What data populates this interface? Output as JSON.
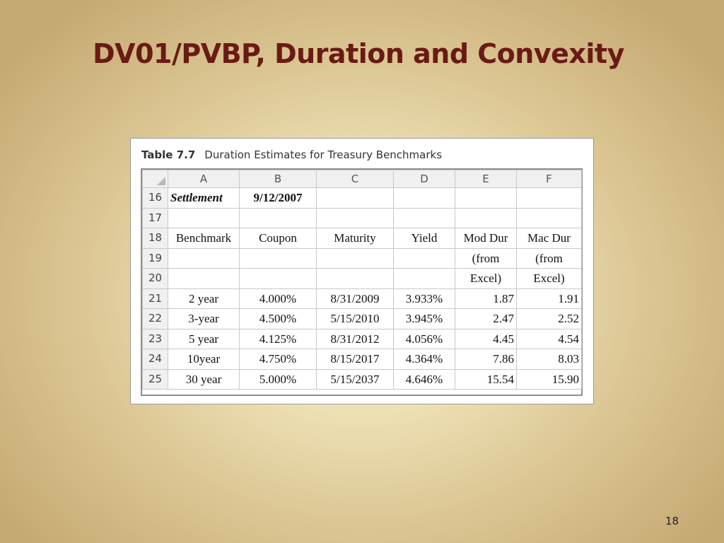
{
  "slide": {
    "title": "DV01/PVBP, Duration and Convexity",
    "page_number": "18"
  },
  "figure": {
    "label": "Table 7.7",
    "caption": "Duration Estimates for Treasury Benchmarks"
  },
  "sheet": {
    "columns": [
      "A",
      "B",
      "C",
      "D",
      "E",
      "F"
    ],
    "rows": {
      "r16": {
        "num": "16",
        "cells": [
          "Settlement",
          "9/12/2007",
          "",
          "",
          "",
          ""
        ]
      },
      "r17": {
        "num": "17",
        "cells": [
          "",
          "",
          "",
          "",
          "",
          ""
        ]
      },
      "r18": {
        "num": "18",
        "cells": [
          "Benchmark",
          "Coupon",
          "Maturity",
          "Yield",
          "Mod Dur",
          "Mac Dur"
        ]
      },
      "r19": {
        "num": "19",
        "cells": [
          "",
          "",
          "",
          "",
          "(from",
          "(from"
        ]
      },
      "r20": {
        "num": "20",
        "cells": [
          "",
          "",
          "",
          "",
          "Excel)",
          "Excel)"
        ]
      },
      "r21": {
        "num": "21",
        "cells": [
          "2 year",
          "4.000%",
          "8/31/2009",
          "3.933%",
          "1.87",
          "1.91"
        ]
      },
      "r22": {
        "num": "22",
        "cells": [
          "3-year",
          "4.500%",
          "5/15/2010",
          "3.945%",
          "2.47",
          "2.52"
        ]
      },
      "r23": {
        "num": "23",
        "cells": [
          "5 year",
          "4.125%",
          "8/31/2012",
          "4.056%",
          "4.45",
          "4.54"
        ]
      },
      "r24": {
        "num": "24",
        "cells": [
          "10year",
          "4.750%",
          "8/15/2017",
          "4.364%",
          "7.86",
          "8.03"
        ]
      },
      "r25": {
        "num": "25",
        "cells": [
          "30 year",
          "5.000%",
          "5/15/2037",
          "4.646%",
          "15.54",
          "15.90"
        ]
      }
    }
  }
}
